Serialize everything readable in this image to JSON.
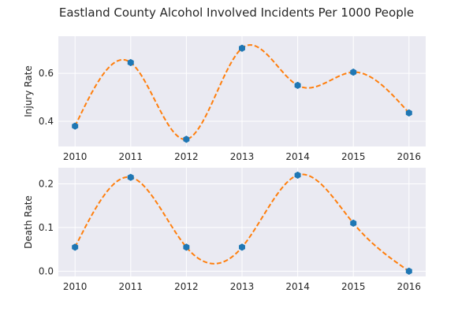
{
  "title": "Eastland County Alcohol Involved Incidents Per 1000 People",
  "colors": {
    "panel_bg": "#eaeaf2",
    "grid": "#ffffff",
    "marker": "#1f77b4",
    "curve": "#ff7f0e",
    "text": "#262626"
  },
  "chart_data": [
    {
      "type": "line",
      "ylabel": "Injury Rate",
      "x": [
        2010,
        2011,
        2012,
        2013,
        2014,
        2015,
        2016
      ],
      "series": [
        {
          "values": [
            0.38,
            0.645,
            0.325,
            0.705,
            0.55,
            0.605,
            0.435
          ],
          "marker": "hexagon",
          "line": "smooth-dashed-interpolation"
        }
      ],
      "xticks": [
        "2010",
        "2011",
        "2012",
        "2013",
        "2014",
        "2015",
        "2016"
      ],
      "yticks": [
        "0.4",
        "0.6"
      ],
      "xlim": [
        2009.7,
        2016.3
      ],
      "ylim": [
        0.295,
        0.755
      ],
      "grid": true
    },
    {
      "type": "line",
      "ylabel": "Death Rate",
      "x": [
        2010,
        2011,
        2012,
        2013,
        2014,
        2015,
        2016
      ],
      "series": [
        {
          "values": [
            0.055,
            0.215,
            0.055,
            0.055,
            0.22,
            0.11,
            0.0
          ],
          "marker": "hexagon",
          "line": "smooth-dashed-interpolation"
        }
      ],
      "xticks": [
        "2010",
        "2011",
        "2012",
        "2013",
        "2014",
        "2015",
        "2016"
      ],
      "yticks": [
        "0.0",
        "0.1",
        "0.2"
      ],
      "xlim": [
        2009.7,
        2016.3
      ],
      "ylim": [
        -0.012,
        0.237
      ],
      "grid": true
    }
  ]
}
